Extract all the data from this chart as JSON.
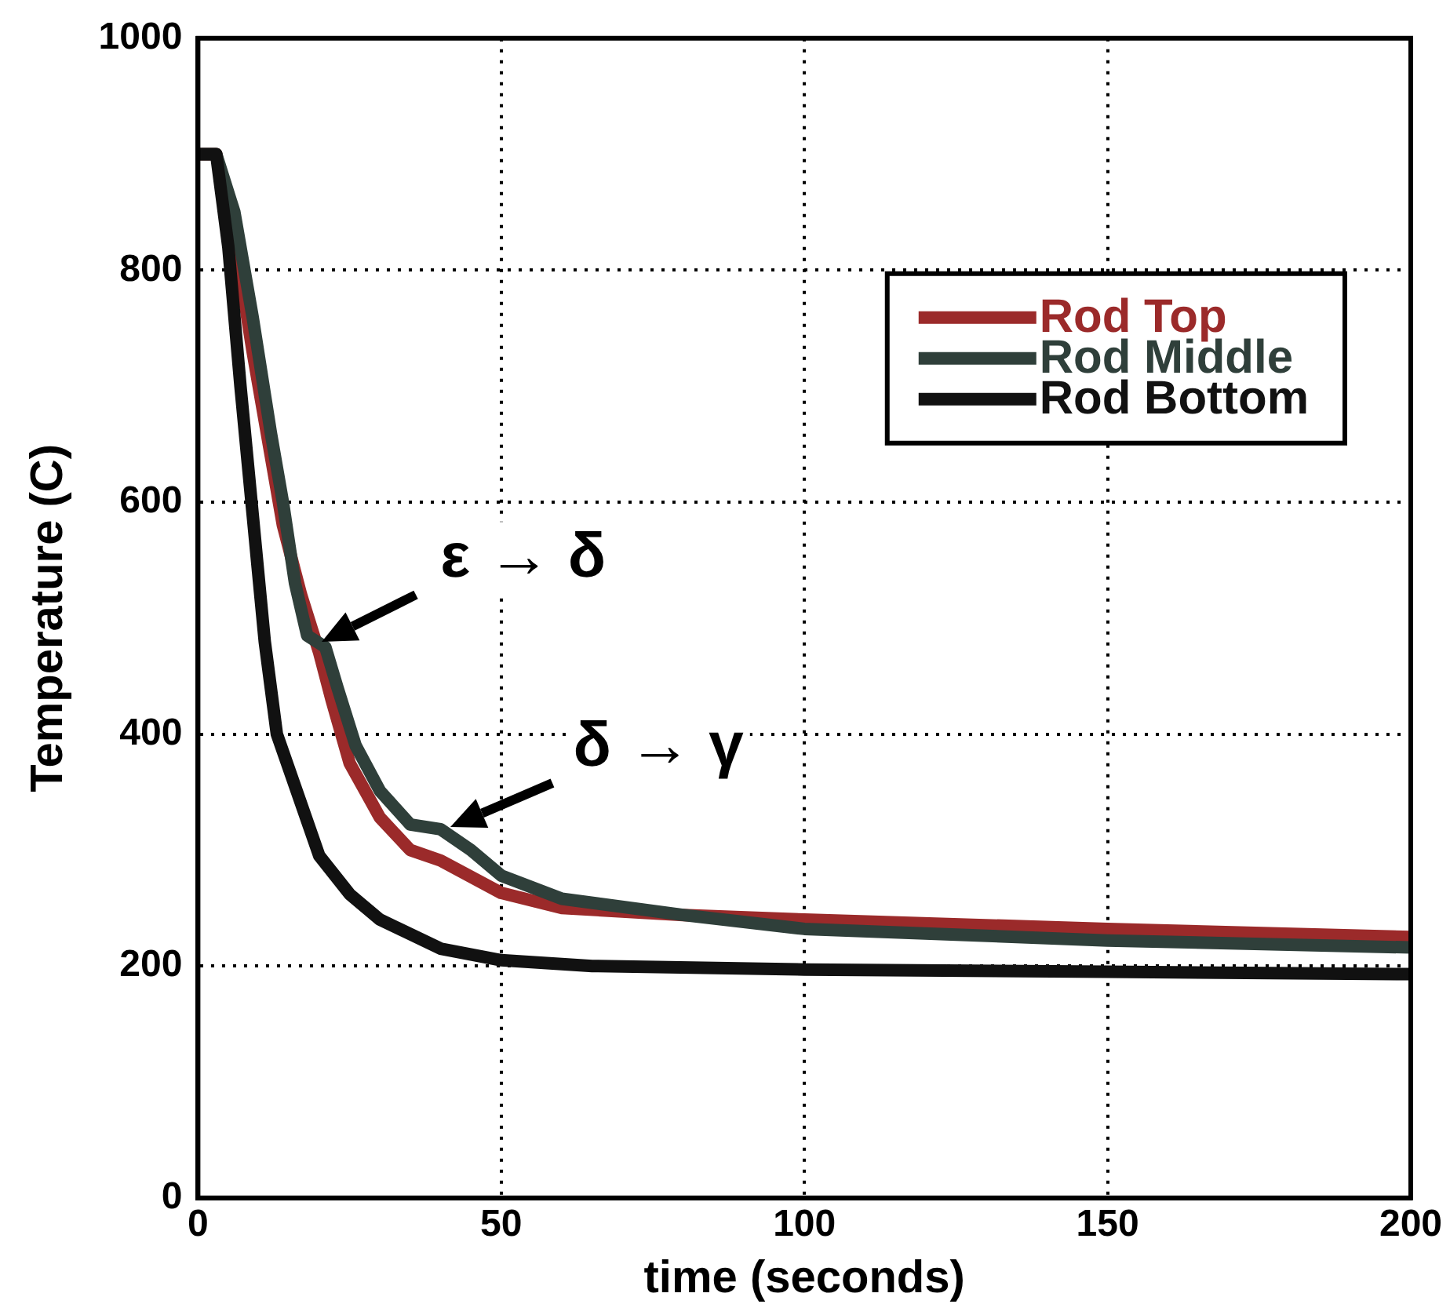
{
  "chart_data": {
    "type": "line",
    "xlabel": "time (seconds)",
    "ylabel": "Temperature (C)",
    "xlim": [
      0,
      200
    ],
    "xticks": [
      0,
      50,
      100,
      150,
      200
    ],
    "ylim": [
      0,
      1000
    ],
    "yticks": [
      0,
      200,
      400,
      600,
      800,
      1000
    ],
    "grid": true,
    "legend": "top right",
    "marker": "none",
    "line_style": "solid",
    "series": [
      {
        "name": "Rod Top",
        "color": "#9b2a2a",
        "x": [
          0,
          3,
          6,
          9,
          12,
          14,
          17,
          20,
          22,
          25,
          30,
          35,
          40,
          50,
          60,
          80,
          100,
          150,
          200
        ],
        "values": [
          900,
          900,
          830,
          730,
          640,
          580,
          520,
          470,
          430,
          375,
          328,
          300,
          291,
          263,
          250,
          244,
          240,
          232,
          225
        ]
      },
      {
        "name": "Rod Middle",
        "color": "#2f3f3a",
        "x": [
          0,
          3,
          6,
          9,
          12,
          14,
          16,
          18,
          21,
          23,
          26,
          30,
          35,
          40,
          45,
          50,
          60,
          80,
          100,
          150,
          200
        ],
        "values": [
          900,
          900,
          850,
          760,
          660,
          600,
          530,
          485,
          475,
          440,
          390,
          351,
          322,
          318,
          300,
          278,
          258,
          244,
          232,
          222,
          216
        ]
      },
      {
        "name": "Rod Bottom",
        "color": "#111111",
        "x": [
          0,
          3,
          5,
          7,
          9,
          11,
          13,
          16,
          20,
          25,
          30,
          40,
          50,
          65,
          100,
          150,
          200
        ],
        "values": [
          900,
          900,
          820,
          700,
          590,
          480,
          400,
          355,
          295,
          262,
          240,
          215,
          205,
          200,
          197,
          195,
          193
        ]
      }
    ],
    "annotations": [
      {
        "text": "ε → δ",
        "x": 20.5,
        "y": 480
      },
      {
        "text": "δ → γ",
        "x": 41.5,
        "y": 320
      }
    ]
  }
}
